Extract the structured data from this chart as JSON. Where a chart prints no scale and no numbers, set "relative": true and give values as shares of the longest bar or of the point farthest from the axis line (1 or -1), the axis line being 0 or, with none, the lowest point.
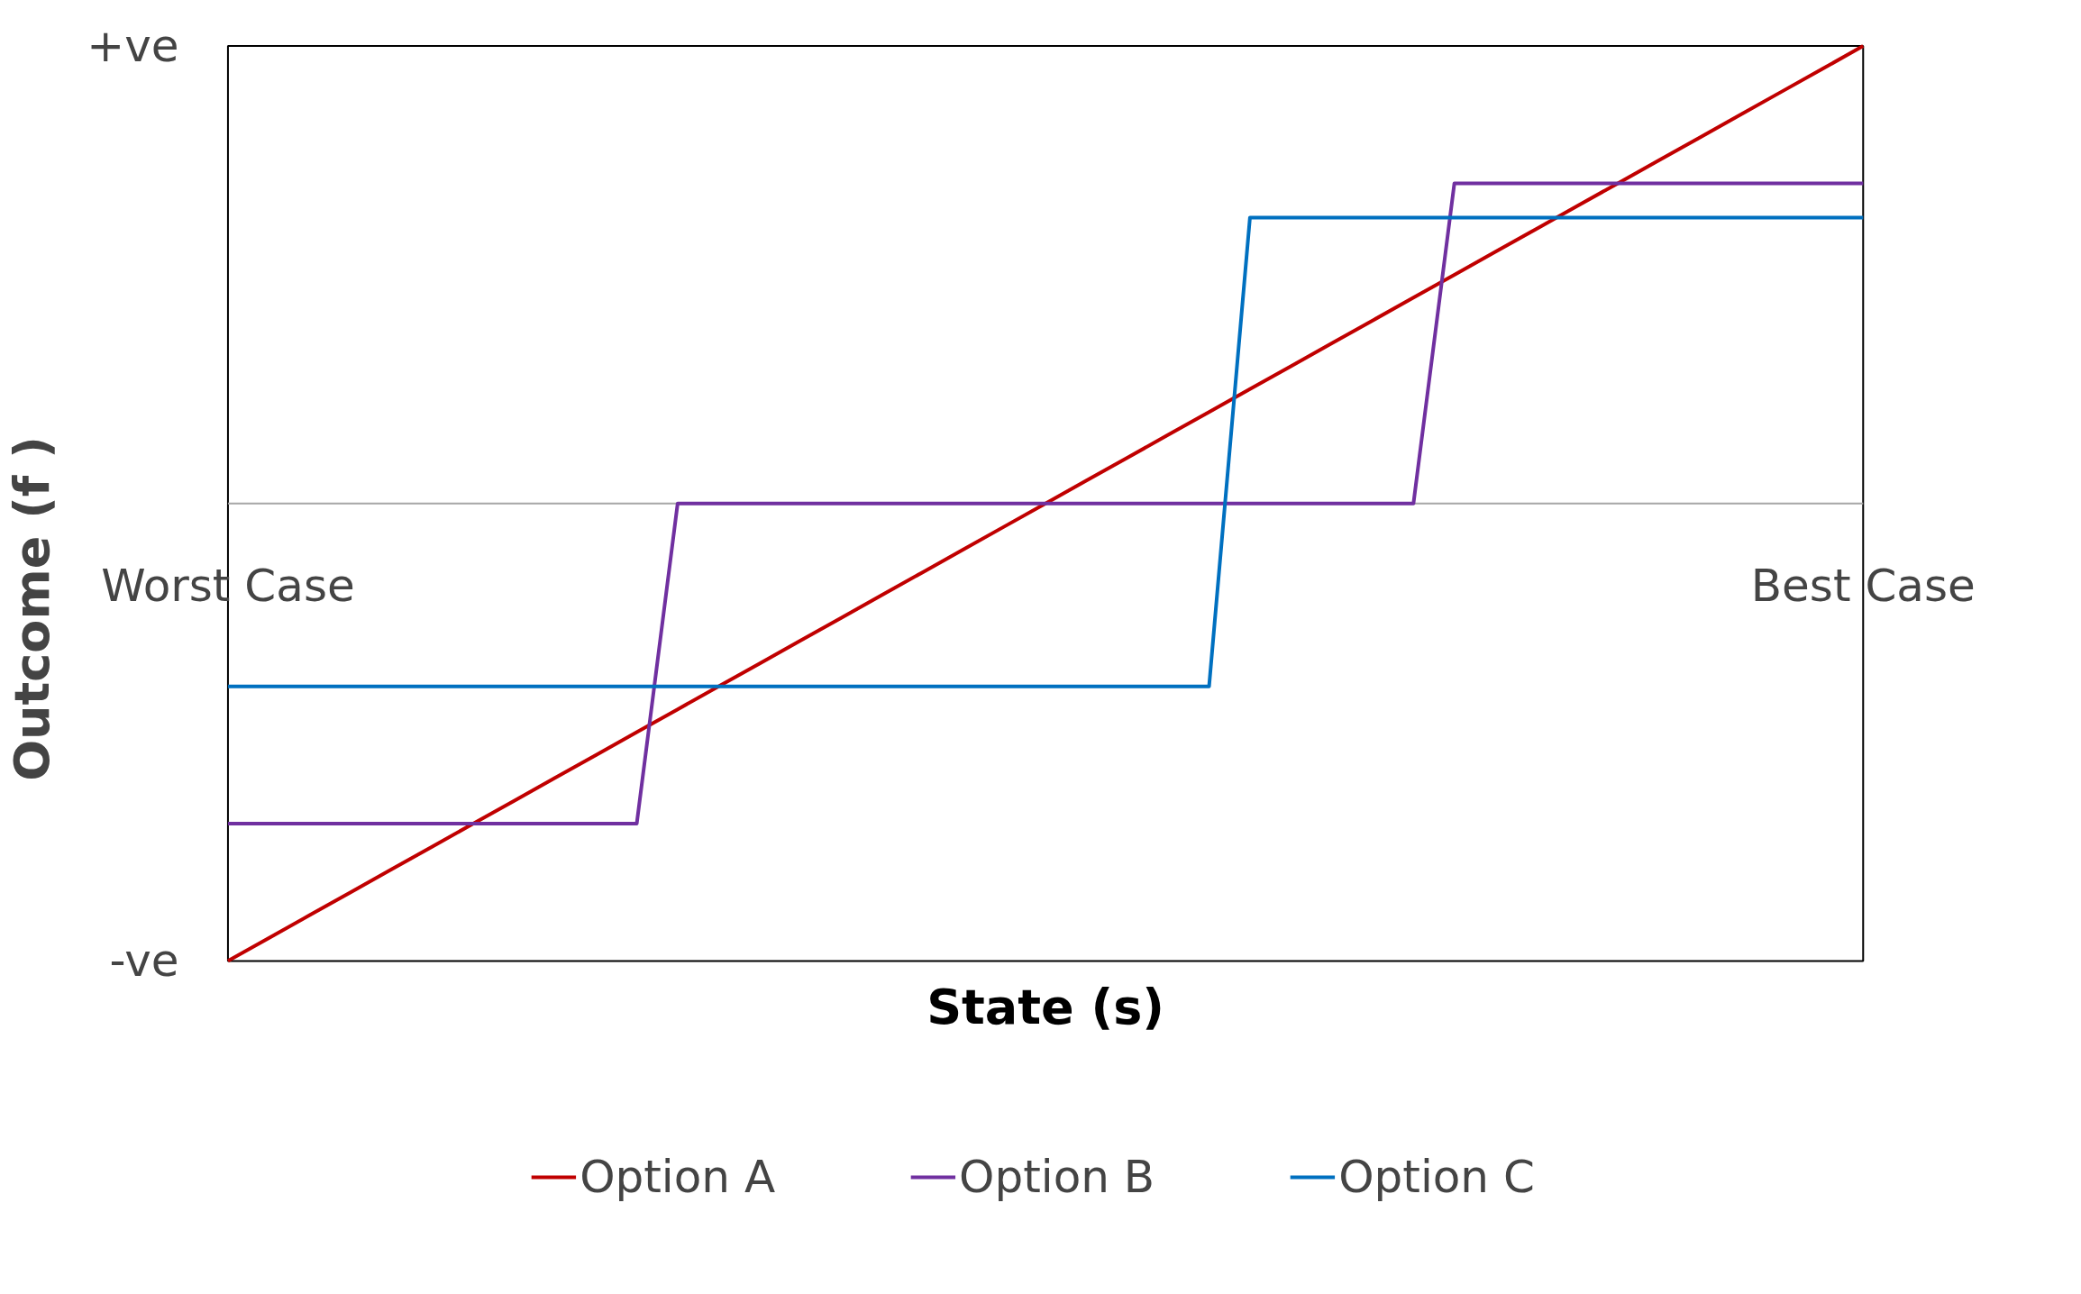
{
  "chart_data": {
    "type": "line",
    "xlabel": "State (s)",
    "ylabel": "Outcome (f )",
    "relative": true,
    "legend": "bottom",
    "marker": "none",
    "line_style": "solid",
    "annotations": [
      "+ve",
      "-ve",
      "Worst Case",
      "Best Case"
    ],
    "categories": [
      null,
      null,
      null,
      null,
      null,
      null,
      null,
      null,
      null,
      null,
      null,
      null,
      null,
      null,
      null,
      null,
      null,
      null,
      null,
      null,
      null,
      null,
      null,
      null,
      null,
      null,
      null,
      null,
      null,
      null,
      null,
      null,
      null,
      null,
      null,
      null,
      null,
      null,
      null,
      null,
      null
    ],
    "series": [
      {
        "name": "Option A",
        "color": "#c00000",
        "values": [
          -1,
          -0.95,
          -0.9,
          -0.85,
          -0.8,
          -0.75,
          -0.7,
          -0.65,
          -0.6,
          -0.55,
          -0.5,
          -0.45,
          -0.4,
          -0.35,
          -0.3,
          -0.25,
          -0.2,
          -0.15,
          -0.1,
          -0.05,
          0,
          0.05,
          0.1,
          0.15,
          0.2,
          0.25,
          0.3,
          0.35,
          0.4,
          0.45,
          0.5,
          0.55,
          0.6,
          0.65,
          0.7,
          0.75,
          0.8,
          0.85,
          0.9,
          0.95,
          1
        ]
      },
      {
        "name": "Option B",
        "color": "#7030a0",
        "values": [
          -0.7,
          -0.7,
          -0.7,
          -0.7,
          -0.7,
          -0.7,
          -0.7,
          -0.7,
          -0.7,
          -0.7,
          -0.7,
          0,
          0,
          0,
          0,
          0,
          0,
          0,
          0,
          0,
          0,
          0,
          0,
          0,
          0,
          0,
          0,
          0,
          0,
          0,
          0.7,
          0.7,
          0.7,
          0.7,
          0.7,
          0.7,
          0.7,
          0.7,
          0.7,
          0.7,
          0.7
        ]
      },
      {
        "name": "Option C",
        "color": "#0070c0",
        "values": [
          -0.4,
          -0.4,
          -0.4,
          -0.4,
          -0.4,
          -0.4,
          -0.4,
          -0.4,
          -0.4,
          -0.4,
          -0.4,
          -0.4,
          -0.4,
          -0.4,
          -0.4,
          -0.4,
          -0.4,
          -0.4,
          -0.4,
          -0.4,
          -0.4,
          -0.4,
          -0.4,
          -0.4,
          -0.4,
          0.625,
          0.625,
          0.625,
          0.625,
          0.625,
          0.625,
          0.625,
          0.625,
          0.625,
          0.625,
          0.625,
          0.625,
          0.625,
          0.625,
          0.625,
          0.625
        ]
      }
    ]
  }
}
